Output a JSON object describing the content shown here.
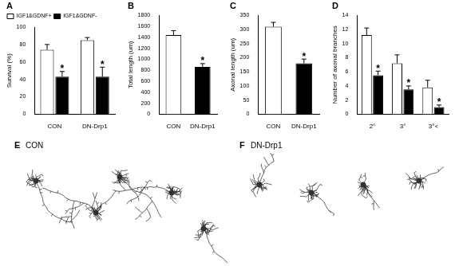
{
  "chart_data": [
    {
      "panel": "A",
      "type": "bar",
      "y_label": "Survival (%)",
      "categories": [
        "CON",
        "DN-Drp1"
      ],
      "series": [
        {
          "name": "IGF1&GDNF+",
          "color": "#ffffff",
          "values": [
            74,
            85
          ],
          "errors": [
            6,
            3
          ]
        },
        {
          "name": "IGF1&GDNF-",
          "color": "#000000",
          "values": [
            43,
            43
          ],
          "errors": [
            6,
            11
          ],
          "annotations": [
            "*",
            "*"
          ]
        }
      ],
      "ylim": [
        0,
        100
      ],
      "yticks": [
        0,
        20,
        40,
        60,
        80,
        100
      ],
      "grid": false,
      "legend": "top"
    },
    {
      "panel": "B",
      "type": "bar",
      "y_label": "Total length (um)",
      "categories": [
        "CON",
        "DN-Drp1"
      ],
      "values": [
        1440,
        860
      ],
      "errors": [
        80,
        60
      ],
      "annotations": [
        null,
        "*"
      ],
      "colors": [
        "#ffffff",
        "#000000"
      ],
      "ylim": [
        0,
        1800
      ],
      "yticks": [
        0,
        200,
        400,
        600,
        800,
        1000,
        1200,
        1400,
        1600,
        1800
      ],
      "grid": false
    },
    {
      "panel": "C",
      "type": "bar",
      "y_label": "Axonal length (um)",
      "categories": [
        "CON",
        "DN-Drp1"
      ],
      "values": [
        310,
        180
      ],
      "errors": [
        15,
        15
      ],
      "annotations": [
        null,
        "*"
      ],
      "colors": [
        "#ffffff",
        "#000000"
      ],
      "ylim": [
        0,
        350
      ],
      "yticks": [
        0,
        50,
        100,
        150,
        200,
        250,
        300,
        350
      ],
      "grid": false
    },
    {
      "panel": "D",
      "type": "bar",
      "y_label": "Number of axonal branches",
      "categories": [
        "2°",
        "3°",
        "3°<"
      ],
      "series": [
        {
          "color": "#ffffff",
          "values": [
            11.2,
            7.2,
            3.8
          ],
          "errors": [
            1.0,
            1.2,
            1.0
          ]
        },
        {
          "color": "#000000",
          "values": [
            5.5,
            3.5,
            1.0
          ],
          "errors": [
            0.6,
            0.5,
            0.3
          ],
          "annotations": [
            "*",
            "*",
            "*"
          ]
        }
      ],
      "ylim": [
        0,
        14
      ],
      "yticks": [
        0,
        2,
        4,
        6,
        8,
        10,
        12,
        14
      ],
      "grid": false
    }
  ],
  "tracings": [
    {
      "panel": "E",
      "label": "CON"
    },
    {
      "panel": "F",
      "label": "DN-Drp1"
    }
  ]
}
